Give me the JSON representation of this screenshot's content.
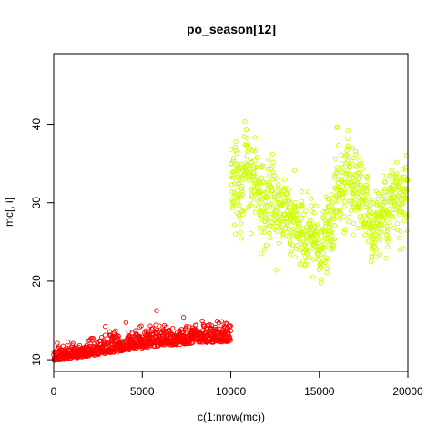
{
  "chart_data": {
    "type": "scatter",
    "title": "po_season[12]",
    "xlabel": "c(1:nrow(mc))",
    "ylabel": "mc[, i]",
    "xlim": [
      0,
      20000
    ],
    "ylim": [
      8.5,
      49
    ],
    "xticks": [
      "0",
      "5000",
      "10000",
      "15000",
      "20000"
    ],
    "yticks": [
      "10",
      "20",
      "30",
      "40"
    ],
    "grid": false,
    "legend": "none",
    "marker": "open-circle",
    "series": [
      {
        "color": "#ff0000",
        "x": [
          0,
          1000,
          2000,
          3000,
          4000,
          5000,
          6000,
          7000,
          8000,
          9000,
          10000
        ],
        "y": [
          10.3,
          10.6,
          11.0,
          11.4,
          11.8,
          12.1,
          12.4,
          12.6,
          12.8,
          12.9,
          13.0
        ],
        "spread": [
          1.4,
          1.5,
          1.6,
          1.7,
          1.8,
          1.9,
          1.9,
          2.0,
          2.0,
          2.0,
          2.1
        ],
        "n_points": 900
      },
      {
        "color": "#ccff00",
        "x": [
          10000,
          10500,
          11000,
          11500,
          12000,
          12500,
          13000,
          13500,
          14000,
          14500,
          15000,
          15500,
          16000,
          16500,
          17000,
          17500,
          18000,
          18500,
          19000,
          19500,
          20000
        ],
        "y": [
          34.0,
          31.5,
          34.5,
          32.0,
          31.5,
          30.0,
          28.5,
          27.0,
          26.5,
          25.5,
          23.5,
          26.0,
          33.0,
          31.5,
          29.5,
          30.0,
          27.0,
          28.5,
          30.5,
          31.5,
          32.0
        ],
        "spread": [
          5.0,
          4.0,
          4.5,
          4.0,
          4.0,
          3.8,
          3.5,
          3.5,
          3.5,
          3.5,
          3.0,
          3.5,
          5.0,
          4.5,
          4.0,
          4.0,
          3.5,
          3.5,
          4.0,
          4.5,
          4.5
        ],
        "n_points": 900
      }
    ]
  }
}
